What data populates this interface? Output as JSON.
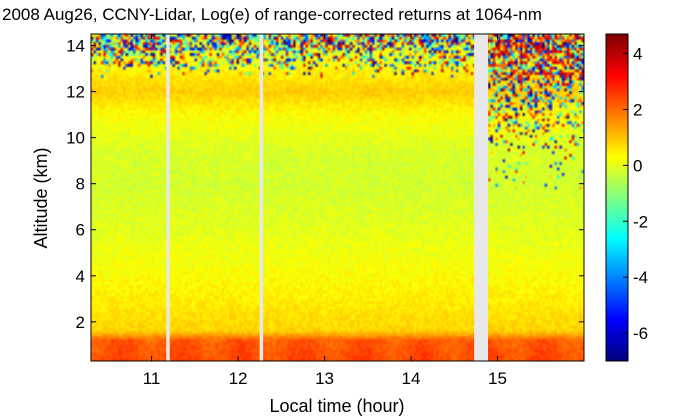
{
  "chart_data": {
    "type": "heatmap",
    "title": "2008 Aug26, CCNY-Lidar, Log(e) of range-corrected returns at 1064-nm",
    "xlabel": "Local time (hour)",
    "ylabel": "Altitude (km)",
    "xlim": [
      10.3,
      16.0
    ],
    "ylim": [
      0.3,
      14.5
    ],
    "x_ticks": [
      11,
      12,
      13,
      14,
      15
    ],
    "y_ticks": [
      2,
      4,
      6,
      8,
      10,
      12,
      14
    ],
    "colorbar": {
      "range": [
        -7,
        4.7
      ],
      "ticks": [
        4,
        2,
        0,
        -2,
        -4,
        -6
      ],
      "colormap": "jet"
    },
    "data_gaps_hours": [
      [
        11.17,
        11.21
      ],
      [
        12.25,
        12.29
      ],
      [
        14.73,
        14.89
      ]
    ],
    "value_profile_by_altitude_km": {
      "altitude": [
        0.3,
        1.2,
        1.6,
        2.5,
        4.0,
        6.0,
        8.0,
        9.5,
        11.0,
        12.0,
        13.0,
        14.5
      ],
      "value": [
        2.4,
        2.2,
        0.8,
        0.6,
        0.3,
        0.0,
        -0.2,
        -0.1,
        0.3,
        0.9,
        0.4,
        -0.2
      ]
    }
  }
}
